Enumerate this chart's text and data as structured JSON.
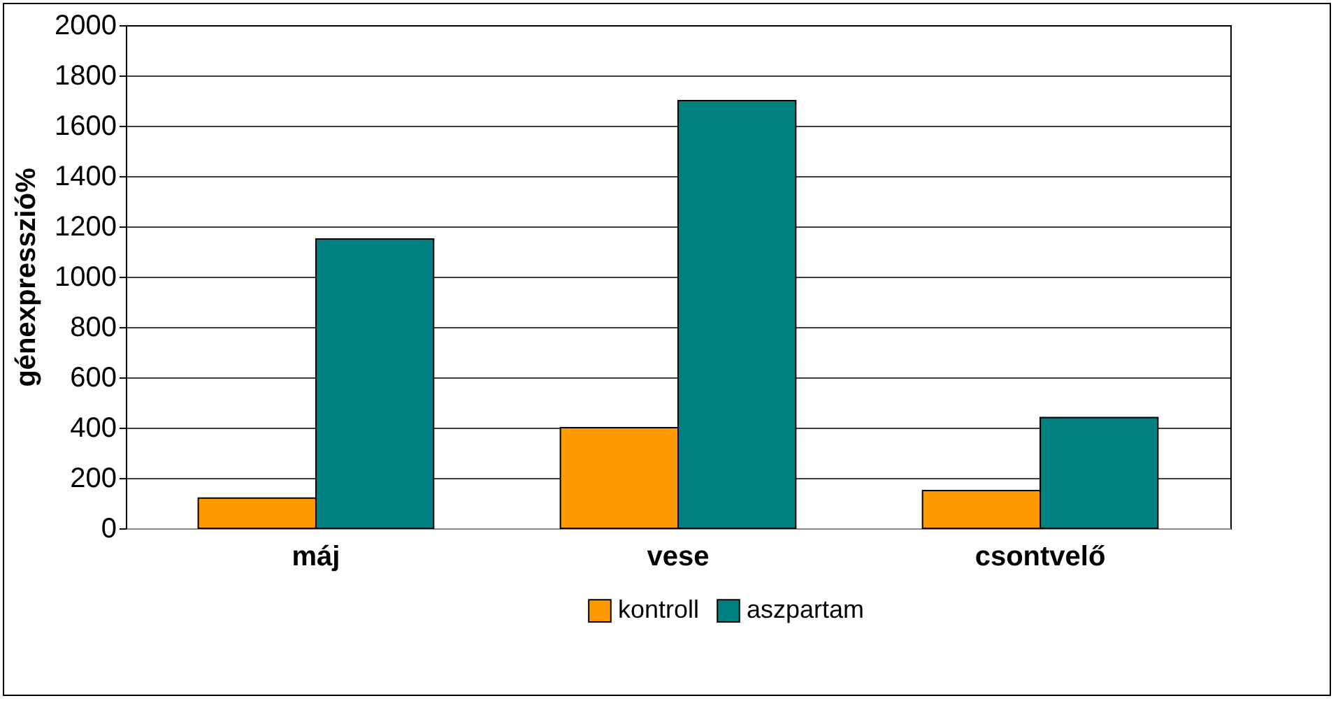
{
  "chart_data": {
    "type": "bar",
    "ylabel": "génexpresszió%",
    "categories": [
      "máj",
      "vese",
      "csontvelő"
    ],
    "series": [
      {
        "name": "kontroll",
        "color": "#ff9900",
        "values": [
          120,
          400,
          150
        ]
      },
      {
        "name": "aszpartam",
        "color": "#008080",
        "values": [
          1150,
          1700,
          440
        ]
      }
    ],
    "ylim": [
      0,
      2000
    ],
    "yticks": [
      0,
      200,
      400,
      600,
      800,
      1000,
      1200,
      1400,
      1600,
      1800,
      2000
    ],
    "grid": "y",
    "legend": "bottom"
  }
}
